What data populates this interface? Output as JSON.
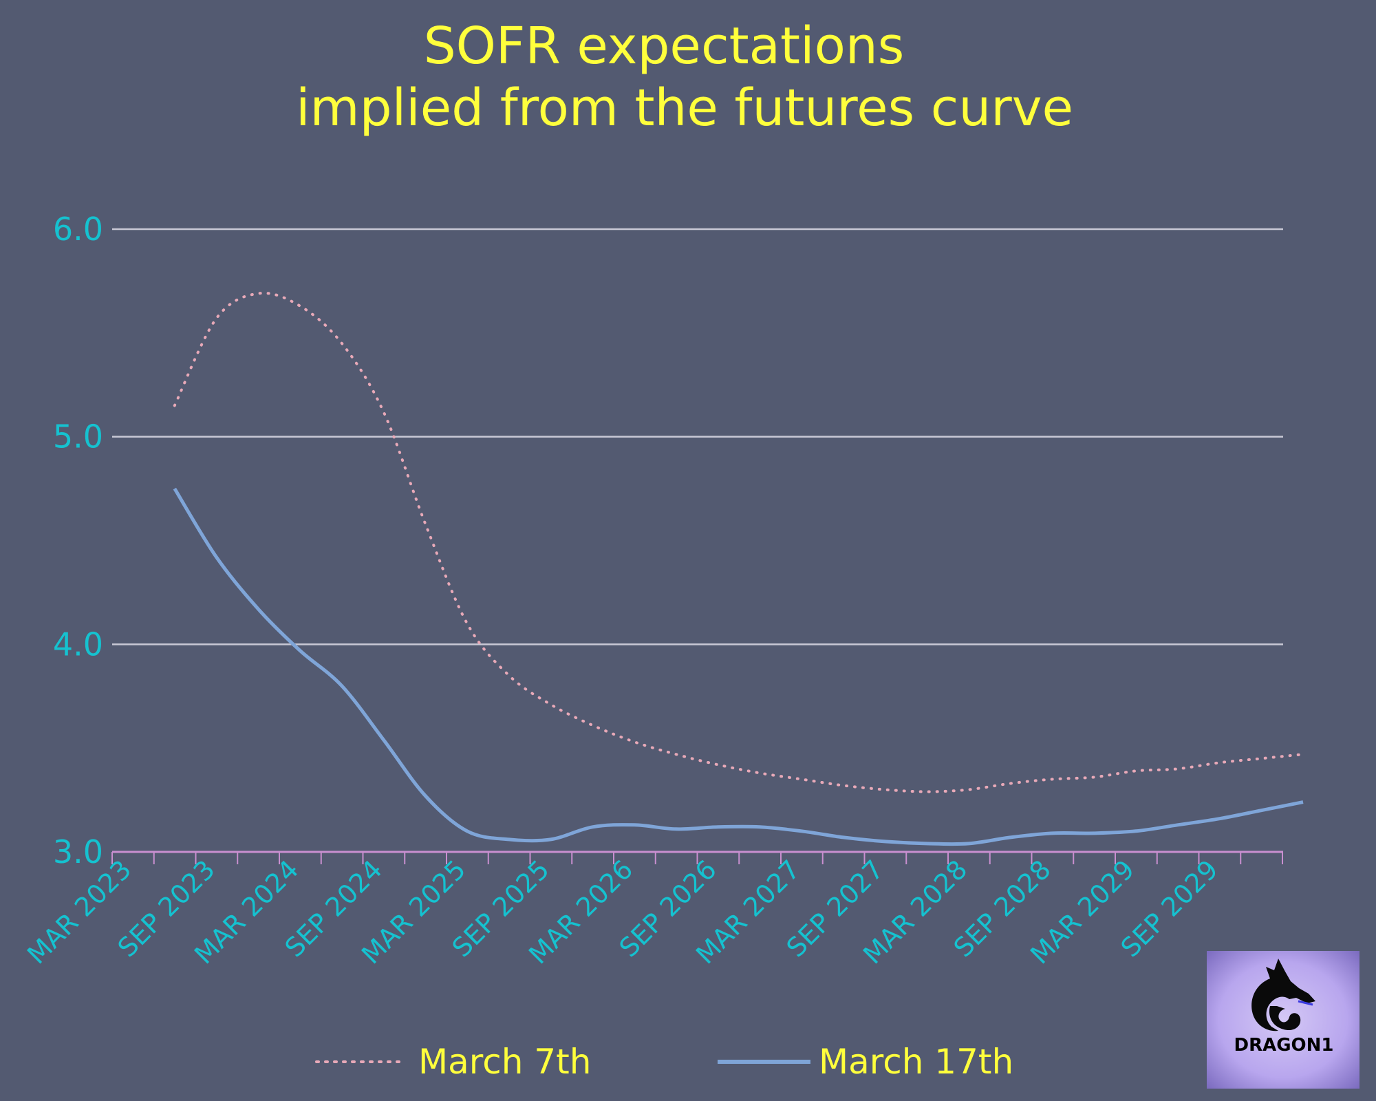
{
  "chart_data": {
    "type": "line",
    "title": [
      "SOFR expectations",
      "implied from the futures curve"
    ],
    "xlabel": "",
    "ylabel": "",
    "ylim": [
      3.0,
      6.0
    ],
    "yticks": [
      "6.0",
      "5.0",
      "4.0",
      "3.0"
    ],
    "xtick_labels": [
      "MAR 2023",
      "SEP 2023",
      "MAR 2024",
      "SEP 2024",
      "MAR 2025",
      "SEP 2025",
      "MAR 2026",
      "SEP 2026",
      "MAR 2027",
      "SEP 2027",
      "MAR 2028",
      "SEP 2028",
      "MAR 2029",
      "SEP 2029"
    ],
    "x": [
      "Jun 2023",
      "Sep 2023",
      "Dec 2023",
      "Mar 2024",
      "Jun 2024",
      "Sep 2024",
      "Dec 2024",
      "Mar 2025",
      "Jun 2025",
      "Sep 2025",
      "Dec 2025",
      "Mar 2026",
      "Jun 2026",
      "Sep 2026",
      "Dec 2026",
      "Mar 2027",
      "Jun 2027",
      "Sep 2027",
      "Dec 2027",
      "Mar 2028",
      "Jun 2028",
      "Sep 2028",
      "Dec 2028",
      "Mar 2029",
      "Jun 2029",
      "Sep 2029",
      "Dec 2029",
      "Mar 2030"
    ],
    "series": [
      {
        "name": "March 7th",
        "style": "dotted",
        "color": "#e8a9b8",
        "values": [
          5.15,
          5.57,
          5.69,
          5.63,
          5.45,
          5.12,
          4.58,
          4.1,
          3.85,
          3.71,
          3.61,
          3.53,
          3.47,
          3.42,
          3.38,
          3.35,
          3.32,
          3.3,
          3.29,
          3.3,
          3.33,
          3.35,
          3.36,
          3.39,
          3.4,
          3.43,
          3.45,
          3.47
        ]
      },
      {
        "name": "March 17th",
        "style": "solid",
        "color": "#7fa5d8",
        "values": [
          4.75,
          4.42,
          4.17,
          3.97,
          3.8,
          3.54,
          3.27,
          3.1,
          3.06,
          3.06,
          3.12,
          3.13,
          3.11,
          3.12,
          3.12,
          3.1,
          3.07,
          3.05,
          3.04,
          3.04,
          3.07,
          3.09,
          3.09,
          3.1,
          3.13,
          3.16,
          3.2,
          3.24
        ]
      }
    ],
    "grid": true,
    "legend_position": "bottom"
  },
  "logo": {
    "text": "DRAGON1",
    "icon": "dragon-icon"
  }
}
